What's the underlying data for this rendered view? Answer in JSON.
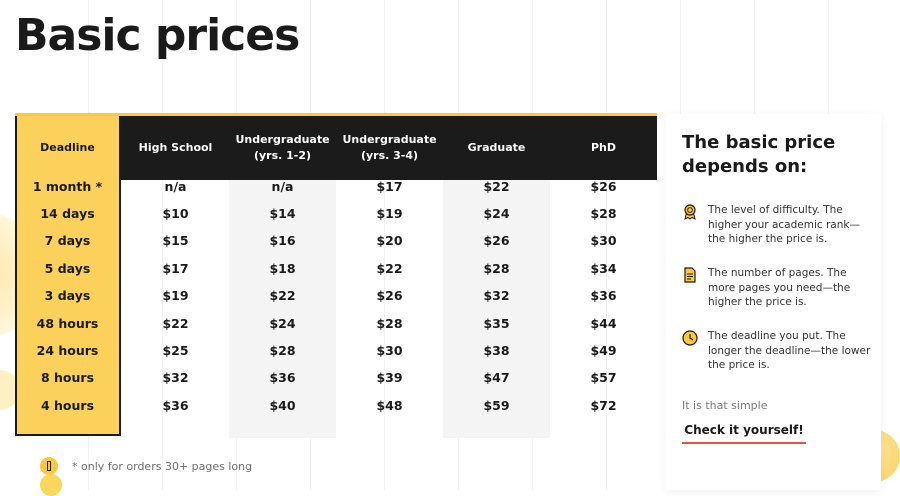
{
  "page": {
    "title": "Basic prices"
  },
  "table": {
    "headers": [
      "Deadline",
      "High School",
      "Undergraduate (yrs. 1-2)",
      "Undergraduate (yrs. 3-4)",
      "Graduate",
      "PhD"
    ],
    "header_lines": [
      [
        "Deadline"
      ],
      [
        "High School"
      ],
      [
        "Undergraduate",
        "(yrs. 1-2)"
      ],
      [
        "Undergraduate",
        "(yrs. 3-4)"
      ],
      [
        "Graduate"
      ],
      [
        "PhD"
      ]
    ],
    "rows": [
      [
        "1 month *",
        "n/a",
        "n/a",
        "$17",
        "$22",
        "$26"
      ],
      [
        "14 days",
        "$10",
        "$14",
        "$19",
        "$24",
        "$28"
      ],
      [
        "7 days",
        "$15",
        "$16",
        "$20",
        "$26",
        "$30"
      ],
      [
        "5 days",
        "$17",
        "$18",
        "$22",
        "$28",
        "$34"
      ],
      [
        "3 days",
        "$19",
        "$22",
        "$26",
        "$32",
        "$36"
      ],
      [
        "48 hours",
        "$22",
        "$24",
        "$28",
        "$35",
        "$44"
      ],
      [
        "24 hours",
        "$25",
        "$28",
        "$30",
        "$38",
        "$49"
      ],
      [
        "8 hours",
        "$32",
        "$36",
        "$39",
        "$47",
        "$57"
      ],
      [
        "4 hours",
        "$36",
        "$40",
        "$48",
        "$59",
        "$72"
      ]
    ]
  },
  "footnote": {
    "text": "* only for orders 30+ pages long",
    "icon": "info-icon"
  },
  "sidebar": {
    "title": "The basic price depends on:",
    "factors": [
      {
        "icon": "ribbon-award-icon",
        "text": "The level of difficulty. The higher your academic rank—the higher the price is."
      },
      {
        "icon": "document-icon",
        "text": "The number of pages. The more pages you need—the higher the price is."
      },
      {
        "icon": "clock-icon",
        "text": "The deadline you put. The longer the deadline—the lower the price is."
      }
    ],
    "simple_text": "It is that simple",
    "cta_label": "Check it yourself!"
  },
  "colors": {
    "accent": "#fcc93d",
    "header_bg": "#1b1b1b",
    "deadline_bg": "#fcd15b",
    "cta_underline": "#e2563f",
    "stripe": "#f4f4f4"
  }
}
